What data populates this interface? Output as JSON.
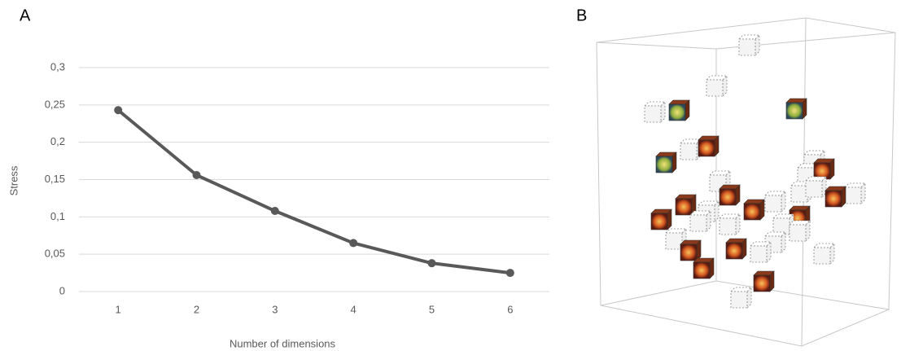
{
  "panels": {
    "left": "A",
    "right": "B"
  },
  "chart_data": {
    "type": "line",
    "x_label": "Number of dimensions",
    "y_label": "Stress",
    "categories": [
      "1",
      "2",
      "3",
      "4",
      "5",
      "6"
    ],
    "values": [
      0.243,
      0.156,
      0.108,
      0.065,
      0.038,
      0.025
    ],
    "color": "#595959",
    "ylim": [
      0,
      0.3
    ],
    "yticks": [
      0,
      {
        "value": 0.05,
        "label": "0,05"
      },
      {
        "value": 0.1,
        "label": "0,1"
      },
      {
        "value": 0.15,
        "label": "0,15"
      },
      {
        "value": 0.2,
        "label": "0,2"
      },
      {
        "value": 0.25,
        "label": "0,25"
      },
      {
        "value": 0.3,
        "label": "0,3"
      }
    ],
    "grid": true
  }
}
